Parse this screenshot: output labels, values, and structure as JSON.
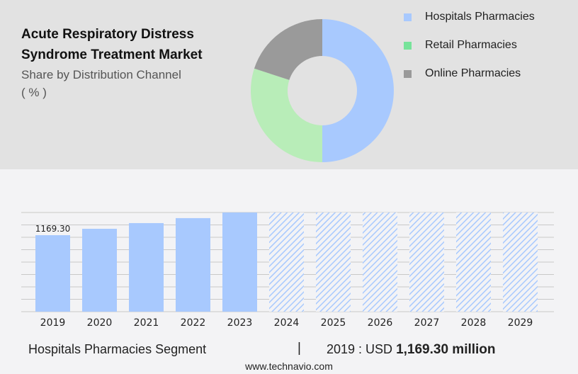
{
  "title": "Acute Respiratory Distress Syndrome Treatment Market",
  "subtitle_line1": "Share by Distribution Channel",
  "subtitle_line2": "( % )",
  "chart_data": [
    {
      "type": "pie",
      "donut": true,
      "categories": [
        "Hospitals Pharmacies",
        "Retail Pharmacies",
        "Online Pharmacies"
      ],
      "values": [
        50,
        30,
        20
      ],
      "colors": [
        "#a8c9fe",
        "#b8edb8",
        "#9a9a9a"
      ],
      "legend_colors": [
        "#a8c9fe",
        "#77e39a",
        "#9a9a9a"
      ],
      "legend": "right"
    },
    {
      "type": "bar",
      "categories": [
        "2019",
        "2020",
        "2021",
        "2022",
        "2023",
        "2024",
        "2025",
        "2026",
        "2027",
        "2028",
        "2029"
      ],
      "values": [
        1169.3,
        1267,
        1354,
        1430,
        1516,
        null,
        null,
        null,
        null,
        null,
        null
      ],
      "forecast_hatched": [
        "2024",
        "2025",
        "2026",
        "2027",
        "2028",
        "2029"
      ],
      "data_labels": {
        "2019": "1169.30"
      },
      "color": "#a8c9fe",
      "grid": true
    }
  ],
  "footer": {
    "segment": "Hospitals Pharmacies Segment",
    "separator": "|",
    "value_prefix": "2019 : USD ",
    "value": "1,169.30 million"
  },
  "site": "www.technavio.com"
}
